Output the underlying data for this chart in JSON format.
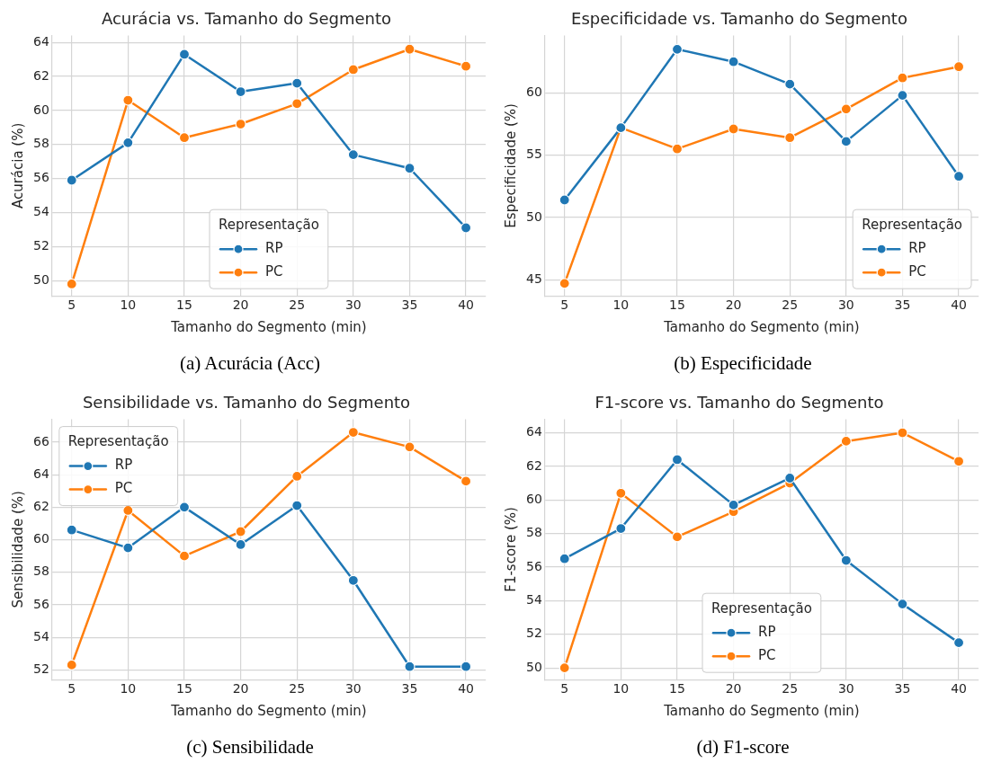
{
  "chart_data": [
    {
      "type": "line",
      "title": "Acurácia vs. Tamanho do Segmento",
      "xlabel": "Tamanho do Segmento (min)",
      "ylabel": "Acurácia (%)",
      "legend_title": "Representação",
      "legend": "bottom",
      "grid": true,
      "marker": "circle",
      "line_style": "solid",
      "x": [
        5,
        10,
        15,
        20,
        25,
        30,
        35,
        40
      ],
      "xlim": [
        3.25,
        41.75
      ],
      "xticks": [
        5,
        10,
        15,
        20,
        25,
        30,
        35,
        40
      ],
      "ylim": [
        49.1,
        64.4
      ],
      "yticks": [
        50,
        52,
        54,
        56,
        58,
        60,
        62,
        64
      ],
      "series": [
        {
          "name": "RP",
          "color": "#1f77b4",
          "values": [
            55.9,
            58.1,
            63.3,
            61.1,
            61.6,
            57.4,
            56.6,
            53.1
          ]
        },
        {
          "name": "PC",
          "color": "#ff7f0e",
          "values": [
            49.8,
            60.6,
            58.4,
            59.2,
            60.4,
            62.4,
            63.6,
            62.6
          ]
        }
      ],
      "annotations": [
        "(a)  Acurácia (Acc)"
      ]
    },
    {
      "type": "line",
      "title": "Especificidade vs. Tamanho do Segmento",
      "xlabel": "Tamanho do Segmento (min)",
      "ylabel": "Especificidade (%)",
      "legend_title": "Representação",
      "legend": "bottom right",
      "grid": true,
      "marker": "circle",
      "line_style": "solid",
      "x": [
        5,
        10,
        15,
        20,
        25,
        30,
        35,
        40
      ],
      "xlim": [
        3.25,
        41.75
      ],
      "xticks": [
        5,
        10,
        15,
        20,
        25,
        30,
        35,
        40
      ],
      "ylim": [
        43.7,
        64.6
      ],
      "yticks": [
        45,
        50,
        55,
        60
      ],
      "series": [
        {
          "name": "RP",
          "color": "#1f77b4",
          "values": [
            51.4,
            57.2,
            63.5,
            62.5,
            60.7,
            56.1,
            59.8,
            53.3
          ]
        },
        {
          "name": "PC",
          "color": "#ff7f0e",
          "values": [
            44.7,
            57.2,
            55.5,
            57.1,
            56.4,
            58.7,
            61.2,
            62.1
          ]
        }
      ],
      "annotations": [
        "(b)  Especificidade"
      ]
    },
    {
      "type": "line",
      "title": "Sensibilidade vs. Tamanho do Segmento",
      "xlabel": "Tamanho do Segmento (min)",
      "ylabel": "Sensibilidade (%)",
      "legend_title": "Representação",
      "legend": "top left",
      "grid": true,
      "marker": "circle",
      "line_style": "solid",
      "x": [
        5,
        10,
        15,
        20,
        25,
        30,
        35,
        40
      ],
      "xlim": [
        3.25,
        41.75
      ],
      "xticks": [
        5,
        10,
        15,
        20,
        25,
        30,
        35,
        40
      ],
      "ylim": [
        51.4,
        67.4
      ],
      "yticks": [
        52,
        54,
        56,
        58,
        60,
        62,
        64,
        66
      ],
      "series": [
        {
          "name": "RP",
          "color": "#1f77b4",
          "values": [
            60.6,
            59.5,
            62.0,
            59.7,
            62.1,
            57.5,
            52.2,
            52.2
          ]
        },
        {
          "name": "PC",
          "color": "#ff7f0e",
          "values": [
            52.3,
            61.8,
            59.0,
            60.5,
            63.9,
            66.6,
            65.7,
            63.6
          ]
        }
      ],
      "annotations": [
        "(c)  Sensibilidade"
      ]
    },
    {
      "type": "line",
      "title": "F1-score vs. Tamanho do Segmento",
      "xlabel": "Tamanho do Segmento (min)",
      "ylabel": "F1-score (%)",
      "legend_title": "Representação",
      "legend": "bottom",
      "grid": true,
      "marker": "circle",
      "line_style": "solid",
      "x": [
        5,
        10,
        15,
        20,
        25,
        30,
        35,
        40
      ],
      "xlim": [
        3.25,
        41.75
      ],
      "xticks": [
        5,
        10,
        15,
        20,
        25,
        30,
        35,
        40
      ],
      "ylim": [
        49.3,
        64.8
      ],
      "yticks": [
        50,
        52,
        54,
        56,
        58,
        60,
        62,
        64
      ],
      "series": [
        {
          "name": "RP",
          "color": "#1f77b4",
          "values": [
            56.5,
            58.3,
            62.4,
            59.7,
            61.3,
            56.4,
            53.8,
            51.5
          ]
        },
        {
          "name": "PC",
          "color": "#ff7f0e",
          "values": [
            50.0,
            60.4,
            57.8,
            59.3,
            61.0,
            63.5,
            64.0,
            62.3
          ]
        }
      ],
      "annotations": [
        "(d)  F1-score"
      ]
    }
  ]
}
